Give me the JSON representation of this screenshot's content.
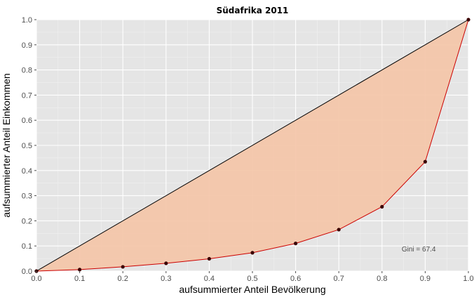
{
  "chart_data": {
    "type": "line",
    "title": "Südafrika 2011",
    "xlabel": "aufsummierter Anteil Bevölkerung",
    "ylabel": "aufsummierter Anteil Einkommen",
    "xlim": [
      0,
      1
    ],
    "ylim": [
      0,
      1
    ],
    "grid": true,
    "x_ticks": [
      "0.0",
      "0.1",
      "0.2",
      "0.3",
      "0.4",
      "0.5",
      "0.6",
      "0.7",
      "0.8",
      "0.9",
      "1.0"
    ],
    "y_ticks": [
      "0.0",
      "0.1",
      "0.2",
      "0.3",
      "0.4",
      "0.5",
      "0.6",
      "0.7",
      "0.8",
      "0.9",
      "1.0"
    ],
    "series": [
      {
        "role": "equality-line",
        "x": [
          0,
          1
        ],
        "y": [
          0,
          1
        ],
        "color": "#000000"
      },
      {
        "role": "lorenz-curve",
        "x": [
          0,
          0.1,
          0.2,
          0.3,
          0.4,
          0.5,
          0.6,
          0.7,
          0.8,
          0.9,
          1.0
        ],
        "y": [
          0,
          0.006,
          0.017,
          0.031,
          0.049,
          0.073,
          0.11,
          0.165,
          0.256,
          0.435,
          1.0
        ],
        "color": "#cc0000",
        "marker_color": "#3a0000"
      }
    ],
    "fill_color": "#f4c4a6",
    "panel_color": "#e5e5e5",
    "annotation": "Gini = 67.4"
  }
}
